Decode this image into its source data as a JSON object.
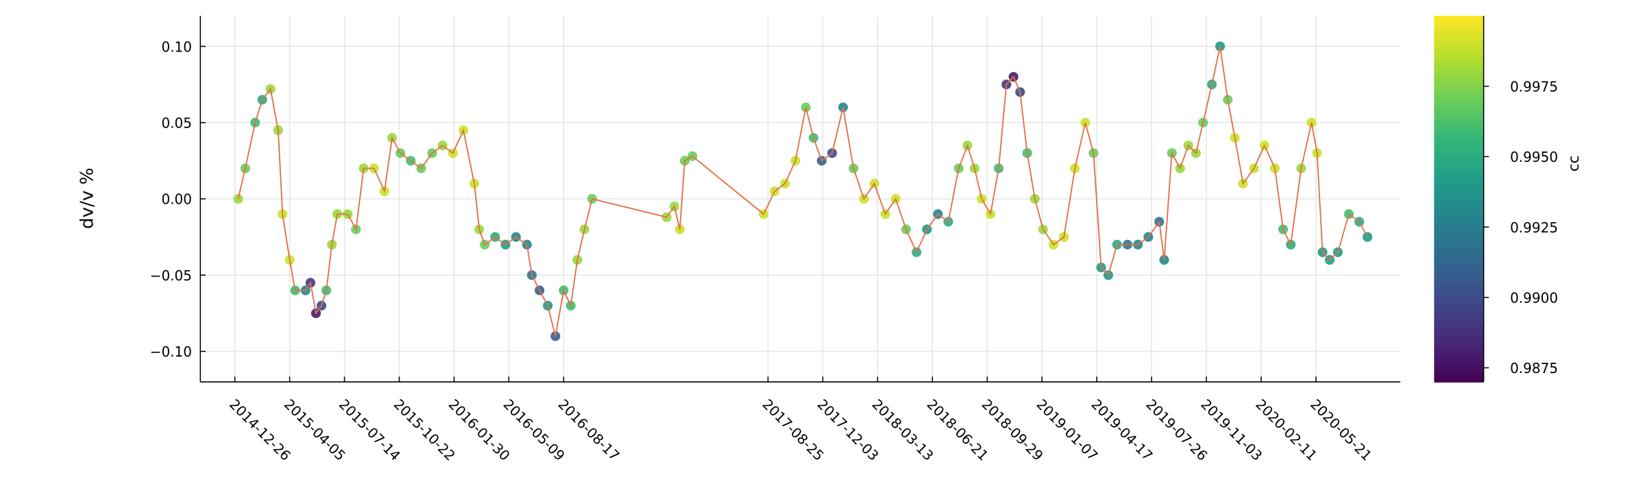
{
  "chart_data": {
    "type": "scatter",
    "y_label": "dv/v %",
    "colorbar_label": "cc",
    "colormap": "viridis",
    "line_color": "#e26f46",
    "grid": true,
    "xlim": [
      "2014-10-24",
      "2020-10-22"
    ],
    "xticks": [
      "2014-12-26",
      "2015-04-05",
      "2015-07-14",
      "2015-10-22",
      "2016-01-30",
      "2016-05-09",
      "2016-08-17",
      "2017-08-25",
      "2017-12-03",
      "2018-03-13",
      "2018-06-21",
      "2018-09-29",
      "2019-01-07",
      "2019-04-17",
      "2019-07-26",
      "2019-11-03",
      "2020-02-11",
      "2020-05-21"
    ],
    "ylim": [
      -0.12,
      0.12
    ],
    "yticks": [
      {
        "value": -0.1,
        "label": "−0.10"
      },
      {
        "value": -0.05,
        "label": "−0.05"
      },
      {
        "value": 0,
        "label": "0.00"
      },
      {
        "value": 0.05,
        "label": "0.05"
      },
      {
        "value": 0.1,
        "label": "0.10"
      }
    ],
    "clim": [
      0.987,
      1.0
    ],
    "cticks": [
      {
        "value": 0.9875,
        "label": "0.9875"
      },
      {
        "value": 0.99,
        "label": "0.9900"
      },
      {
        "value": 0.9925,
        "label": "0.9925"
      },
      {
        "value": 0.995,
        "label": "0.9950"
      },
      {
        "value": 0.9975,
        "label": "0.9975"
      }
    ],
    "x": [
      "2015-01-01",
      "2015-01-14",
      "2015-02-01",
      "2015-02-14",
      "2015-03-01",
      "2015-03-15",
      "2015-03-23",
      "2015-04-05",
      "2015-04-15",
      "2015-05-04",
      "2015-05-13",
      "2015-05-23",
      "2015-06-02",
      "2015-06-11",
      "2015-06-21",
      "2015-07-01",
      "2015-07-20",
      "2015-08-04",
      "2015-08-18",
      "2015-09-06",
      "2015-09-25",
      "2015-10-09",
      "2015-10-24",
      "2015-11-12",
      "2015-12-01",
      "2015-12-21",
      "2016-01-09",
      "2016-01-28",
      "2016-02-16",
      "2016-03-07",
      "2016-03-16",
      "2016-03-26",
      "2016-04-14",
      "2016-05-03",
      "2016-05-22",
      "2016-06-11",
      "2016-06-20",
      "2016-07-04",
      "2016-07-19",
      "2016-08-02",
      "2016-08-17",
      "2016-08-30",
      "2016-09-11",
      "2016-09-24",
      "2016-10-08",
      "2017-02-21",
      "2017-03-07",
      "2017-03-17",
      "2017-03-26",
      "2017-04-09",
      "2017-08-17",
      "2017-09-06",
      "2017-09-25",
      "2017-10-14",
      "2017-11-02",
      "2017-11-16",
      "2017-12-01",
      "2017-12-20",
      "2018-01-09",
      "2018-01-28",
      "2018-02-16",
      "2018-03-07",
      "2018-03-27",
      "2018-04-15",
      "2018-05-04",
      "2018-05-23",
      "2018-06-11",
      "2018-07-01",
      "2018-07-20",
      "2018-08-08",
      "2018-08-24",
      "2018-09-06",
      "2018-09-19",
      "2018-10-05",
      "2018-10-20",
      "2018-11-03",
      "2018-11-16",
      "2018-11-28",
      "2018-12-11",
      "2018-12-25",
      "2019-01-09",
      "2019-01-28",
      "2019-02-16",
      "2019-03-08",
      "2019-03-27",
      "2019-04-11",
      "2019-04-25",
      "2019-05-08",
      "2019-05-24",
      "2019-06-12",
      "2019-07-01",
      "2019-07-20",
      "2019-08-09",
      "2019-08-18",
      "2019-09-01",
      "2019-09-16",
      "2019-10-01",
      "2019-10-15",
      "2019-10-28",
      "2019-11-13",
      "2019-11-28",
      "2019-12-12",
      "2019-12-25",
      "2020-01-09",
      "2020-01-29",
      "2020-02-17",
      "2020-03-07",
      "2020-03-22",
      "2020-04-05",
      "2020-04-24",
      "2020-05-13",
      "2020-05-23",
      "2020-06-02",
      "2020-06-15",
      "2020-06-30",
      "2020-07-20",
      "2020-08-08",
      "2020-08-23"
    ],
    "values": [
      0.0,
      0.02,
      0.05,
      0.065,
      0.072,
      0.045,
      -0.01,
      -0.04,
      -0.06,
      -0.06,
      -0.055,
      -0.075,
      -0.07,
      -0.06,
      -0.03,
      -0.01,
      -0.01,
      -0.02,
      0.02,
      0.02,
      0.005,
      0.04,
      0.03,
      0.025,
      0.02,
      0.03,
      0.035,
      0.03,
      0.045,
      0.01,
      -0.02,
      -0.03,
      -0.025,
      -0.03,
      -0.025,
      -0.03,
      -0.05,
      -0.06,
      -0.07,
      -0.09,
      -0.06,
      -0.07,
      -0.04,
      -0.02,
      0.0,
      -0.012,
      -0.005,
      -0.02,
      0.025,
      0.028,
      -0.01,
      0.005,
      0.01,
      0.025,
      0.06,
      0.04,
      0.025,
      0.03,
      0.06,
      0.02,
      0.0,
      0.01,
      -0.01,
      0.0,
      -0.02,
      -0.035,
      -0.02,
      -0.01,
      -0.015,
      0.02,
      0.035,
      0.02,
      0.0,
      -0.01,
      0.02,
      0.075,
      0.08,
      0.07,
      0.03,
      0.0,
      -0.02,
      -0.03,
      -0.025,
      0.02,
      0.05,
      0.03,
      -0.045,
      -0.05,
      -0.03,
      -0.03,
      -0.03,
      -0.025,
      -0.015,
      -0.04,
      0.03,
      0.02,
      0.035,
      0.03,
      0.05,
      0.075,
      0.1,
      0.065,
      0.04,
      0.01,
      0.02,
      0.035,
      0.02,
      -0.02,
      -0.03,
      0.02,
      0.05,
      0.03,
      -0.035,
      -0.04,
      -0.035,
      -0.01,
      -0.015,
      -0.025
    ],
    "cc": [
      0.998,
      0.997,
      0.996,
      0.995,
      0.998,
      0.998,
      0.999,
      0.999,
      0.996,
      0.993,
      0.989,
      0.988,
      0.99,
      0.996,
      0.998,
      0.998,
      0.998,
      0.997,
      0.998,
      0.999,
      0.999,
      0.998,
      0.997,
      0.996,
      0.997,
      0.997,
      0.998,
      0.999,
      0.999,
      0.999,
      0.998,
      0.997,
      0.995,
      0.994,
      0.993,
      0.993,
      0.992,
      0.991,
      0.994,
      0.991,
      0.996,
      0.996,
      0.998,
      0.998,
      0.997,
      0.998,
      0.998,
      0.999,
      0.997,
      0.997,
      0.999,
      0.999,
      0.999,
      0.999,
      0.997,
      0.996,
      0.991,
      0.99,
      0.993,
      0.997,
      0.999,
      0.999,
      0.999,
      0.999,
      0.997,
      0.995,
      0.994,
      0.993,
      0.995,
      0.997,
      0.998,
      0.998,
      0.999,
      0.999,
      0.996,
      0.989,
      0.988,
      0.99,
      0.996,
      0.998,
      0.998,
      0.999,
      0.999,
      0.999,
      0.999,
      0.997,
      0.994,
      0.994,
      0.995,
      0.992,
      0.993,
      0.993,
      0.992,
      0.993,
      0.997,
      0.998,
      0.998,
      0.998,
      0.997,
      0.995,
      0.994,
      0.997,
      0.999,
      0.999,
      0.999,
      0.999,
      0.999,
      0.996,
      0.995,
      0.998,
      0.999,
      0.999,
      0.994,
      0.994,
      0.994,
      0.996,
      0.995,
      0.994
    ]
  }
}
